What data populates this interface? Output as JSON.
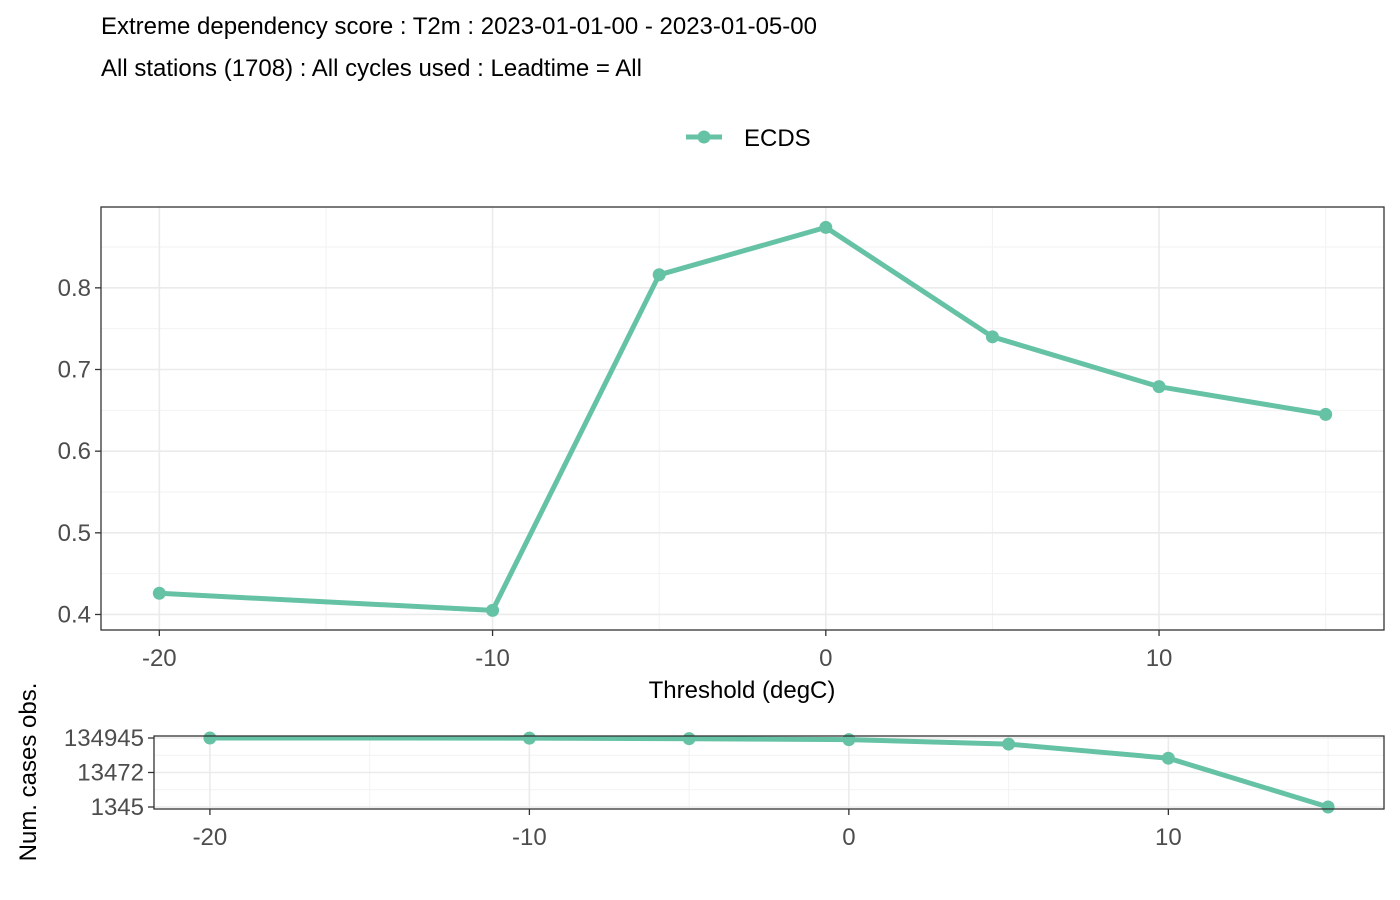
{
  "title_line1": "Extreme dependency score : T2m : 2023-01-01-00 - 2023-01-05-00",
  "title_line2": "All stations (1708) : All cycles used : Leadtime = All",
  "legend": {
    "label": "ECDS",
    "color": "#66c2a5"
  },
  "main_xlabel": "Threshold (degC)",
  "bottom_ylabel": "Num. cases obs.",
  "chart_data": [
    {
      "type": "line",
      "series": [
        {
          "name": "ECDS",
          "color": "#66c2a5",
          "x": [
            -20,
            -10,
            -5,
            0,
            5,
            10,
            15
          ],
          "values": [
            0.426,
            0.405,
            0.816,
            0.874,
            0.74,
            0.679,
            0.645
          ]
        }
      ],
      "xlabel": "Threshold (degC)",
      "ylabel": "",
      "xlim": [
        -21.75,
        16.75
      ],
      "ylim": [
        0.381,
        0.899
      ],
      "xticks": [
        -20,
        -10,
        0,
        10
      ],
      "xtick_labels": [
        "-20",
        "-10",
        "0",
        "10"
      ],
      "yticks": [
        0.4,
        0.5,
        0.6,
        0.7,
        0.8
      ],
      "ytick_labels": [
        "0.4",
        "0.5",
        "0.6",
        "0.7",
        "0.8"
      ],
      "grid": true,
      "legend_position": "top"
    },
    {
      "type": "line",
      "series": [
        {
          "name": "ECDS",
          "color": "#66c2a5",
          "x": [
            -20,
            -10,
            -5,
            0,
            5,
            10,
            15
          ],
          "values": [
            134945,
            134100,
            129000,
            121000,
            90000,
            35000,
            1345
          ]
        }
      ],
      "xlabel": "",
      "ylabel": "Num. cases obs.",
      "xlim": [
        -21.75,
        16.75
      ],
      "yscale": "log",
      "yticks": [
        1345,
        13472,
        134945
      ],
      "ytick_labels": [
        "1345",
        "13472",
        "134945"
      ],
      "grid": true
    }
  ]
}
